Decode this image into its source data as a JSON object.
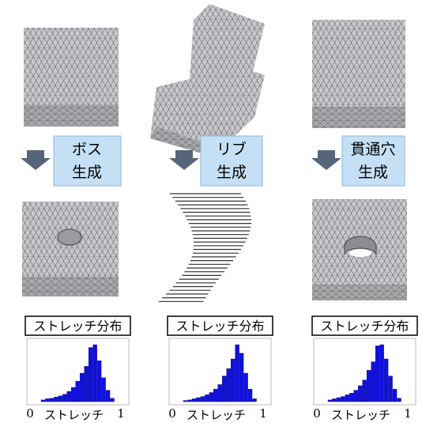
{
  "steps": [
    {
      "line1": "ボス",
      "line2": "生成"
    },
    {
      "line1": "リブ",
      "line2": "生成"
    },
    {
      "line1": "貫通穴",
      "line2": "生成"
    }
  ],
  "histograms": [
    {
      "title": "ストレッチ分布",
      "xmin": "0",
      "xmax": "1",
      "xlabel": "ストレッチ",
      "values": [
        3,
        5,
        6,
        8,
        10,
        13,
        18,
        25,
        36,
        50,
        62,
        95,
        100,
        72,
        42,
        20,
        6
      ]
    },
    {
      "title": "ストレッチ分布",
      "xmin": "0",
      "xmax": "1",
      "xlabel": "ストレッチ",
      "values": [
        2,
        3,
        5,
        7,
        9,
        12,
        16,
        22,
        30,
        45,
        58,
        75,
        100,
        85,
        50,
        22,
        5
      ]
    },
    {
      "title": "ストレッチ分布",
      "xmin": "0",
      "xmax": "1",
      "xlabel": "ストレッチ",
      "values": [
        3,
        5,
        7,
        9,
        12,
        15,
        20,
        28,
        38,
        55,
        70,
        98,
        100,
        75,
        45,
        22,
        6
      ]
    }
  ]
}
